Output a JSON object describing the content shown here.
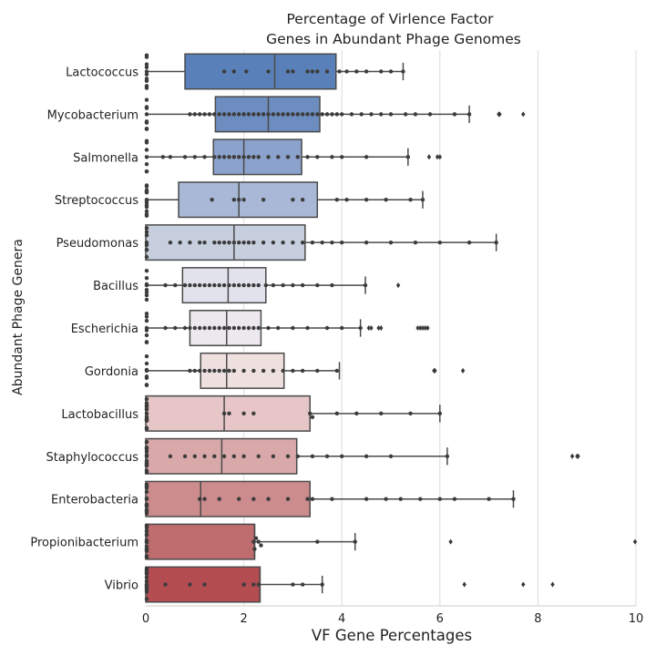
{
  "chart_data": {
    "type": "box",
    "orientation": "horizontal",
    "title": [
      "Percentage of Virlence Factor",
      "Genes in Abundant Phage Genomes"
    ],
    "xlabel": "VF Gene Percentages",
    "ylabel": "Abundant Phage Genera",
    "xlim": [
      0,
      10
    ],
    "xticks": [
      0,
      2,
      4,
      6,
      8,
      10
    ],
    "grid": "vertical",
    "overlay": "swarm points",
    "categories": [
      "Lactococcus",
      "Mycobacterium",
      "Salmonella",
      "Streptococcus",
      "Pseudomonas",
      "Bacillus",
      "Escherichia",
      "Gordonia",
      "Lactobacillus",
      "Staphylococcus",
      "Enterobacteria",
      "Propionibacterium",
      "Vibrio"
    ],
    "colors": [
      "#5a80b9",
      "#6d8dc0",
      "#8ba2cc",
      "#a9b8d7",
      "#c7cfdf",
      "#e1e2ec",
      "#ece8ee",
      "#efe0e0",
      "#e6c6c7",
      "#d9a9aa",
      "#cc8b8c",
      "#bf6c6e",
      "#b34d52"
    ],
    "boxes": [
      {
        "min": 0,
        "q1": 0.8,
        "median": 2.63,
        "q3": 3.88,
        "max": 5.25,
        "outliers": []
      },
      {
        "min": 0,
        "q1": 1.42,
        "median": 2.5,
        "q3": 3.55,
        "max": 6.6,
        "outliers": [
          7.2,
          7.22,
          7.7
        ]
      },
      {
        "min": 0,
        "q1": 1.38,
        "median": 2.0,
        "q3": 3.18,
        "max": 5.35,
        "outliers": [
          5.78,
          5.95,
          6.0
        ]
      },
      {
        "min": 0,
        "q1": 0.67,
        "median": 1.9,
        "q3": 3.5,
        "max": 5.65,
        "outliers": []
      },
      {
        "min": 0,
        "q1": 0.0,
        "median": 1.8,
        "q3": 3.25,
        "max": 7.15,
        "outliers": []
      },
      {
        "min": 0,
        "q1": 0.75,
        "median": 1.68,
        "q3": 2.45,
        "max": 4.48,
        "outliers": [
          5.15
        ]
      },
      {
        "min": 0,
        "q1": 0.9,
        "median": 1.65,
        "q3": 2.35,
        "max": 4.38,
        "outliers": [
          4.55,
          4.6,
          4.75,
          4.8,
          5.55,
          5.6,
          5.65,
          5.7,
          5.75
        ]
      },
      {
        "min": 0,
        "q1": 1.12,
        "median": 1.65,
        "q3": 2.82,
        "max": 3.95,
        "outliers": [
          5.88,
          5.9,
          6.47
        ]
      },
      {
        "min": 0,
        "q1": 0.0,
        "median": 1.6,
        "q3": 3.35,
        "max": 6.0,
        "outliers": []
      },
      {
        "min": 0,
        "q1": 0.0,
        "median": 1.55,
        "q3": 3.08,
        "max": 6.15,
        "outliers": [
          8.7,
          8.8,
          8.82
        ]
      },
      {
        "min": 0,
        "q1": 0.0,
        "median": 1.12,
        "q3": 3.35,
        "max": 7.5,
        "outliers": []
      },
      {
        "min": 0,
        "q1": 0.0,
        "median": 2.22,
        "q3": 2.22,
        "max": 4.27,
        "outliers": [
          6.22,
          10.0
        ]
      },
      {
        "min": 0,
        "q1": 0.0,
        "median": 2.33,
        "q3": 2.33,
        "max": 3.6,
        "outliers": [
          6.5,
          7.7,
          8.3
        ]
      }
    ],
    "points": [
      [
        0.0,
        0.0,
        0.0,
        0.0,
        0.0,
        0.0,
        0.0,
        0.0,
        0.0,
        0.0,
        1.6,
        1.8,
        2.05,
        2.5,
        2.9,
        3.0,
        3.3,
        3.4,
        3.5,
        3.7,
        3.95,
        4.1,
        4.3,
        4.5,
        4.8,
        5.0,
        5.25
      ],
      [
        0.0,
        0.0,
        0.0,
        0.0,
        0.0,
        0.0,
        0.0,
        0.0,
        0.9,
        1.0,
        1.1,
        1.2,
        1.3,
        1.4,
        1.5,
        1.6,
        1.7,
        1.8,
        1.9,
        2.0,
        2.1,
        2.2,
        2.3,
        2.4,
        2.5,
        2.6,
        2.7,
        2.8,
        2.9,
        3.0,
        3.1,
        3.2,
        3.3,
        3.4,
        3.5,
        3.6,
        3.7,
        3.8,
        3.9,
        4.0,
        4.2,
        4.4,
        4.6,
        4.8,
        5.0,
        5.3,
        5.5,
        5.8,
        6.3,
        6.6
      ],
      [
        0.0,
        0.0,
        0.0,
        0.0,
        0.0,
        0.0,
        0.0,
        0.35,
        0.5,
        0.8,
        1.0,
        1.2,
        1.4,
        1.5,
        1.6,
        1.7,
        1.8,
        1.9,
        2.0,
        2.1,
        2.2,
        2.3,
        2.5,
        2.7,
        2.9,
        3.1,
        3.3,
        3.5,
        3.8,
        4.0,
        4.5,
        5.35
      ],
      [
        0.0,
        0.0,
        0.0,
        0.0,
        0.0,
        0.0,
        0.0,
        0.0,
        0.0,
        0.0,
        0.0,
        0.0,
        0.0,
        0.0,
        1.35,
        1.8,
        1.9,
        2.0,
        2.4,
        3.0,
        3.2,
        3.9,
        4.1,
        4.5,
        4.9,
        5.4,
        5.65
      ],
      [
        0.0,
        0.0,
        0.0,
        0.0,
        0.0,
        0.0,
        0.0,
        0.0,
        0.5,
        0.7,
        0.9,
        1.1,
        1.2,
        1.4,
        1.5,
        1.6,
        1.7,
        1.8,
        1.9,
        2.0,
        2.1,
        2.2,
        2.4,
        2.6,
        2.8,
        3.0,
        3.2,
        3.4,
        3.6,
        3.8,
        4.0,
        4.5,
        5.0,
        5.5,
        6.0,
        6.6,
        7.15
      ],
      [
        0.0,
        0.0,
        0.0,
        0.0,
        0.0,
        0.0,
        0.0,
        0.0,
        0.4,
        0.6,
        0.8,
        0.9,
        1.0,
        1.1,
        1.2,
        1.3,
        1.4,
        1.5,
        1.6,
        1.7,
        1.8,
        1.9,
        2.0,
        2.1,
        2.2,
        2.3,
        2.45,
        2.6,
        2.8,
        3.0,
        3.2,
        3.5,
        3.8,
        4.48
      ],
      [
        0.0,
        0.0,
        0.0,
        0.0,
        0.0,
        0.0,
        0.0,
        0.0,
        0.4,
        0.6,
        0.8,
        0.9,
        1.0,
        1.1,
        1.2,
        1.3,
        1.4,
        1.5,
        1.6,
        1.7,
        1.8,
        1.9,
        2.0,
        2.1,
        2.2,
        2.3,
        2.5,
        2.7,
        3.0,
        3.3,
        3.7,
        4.0,
        4.38
      ],
      [
        0.0,
        0.0,
        0.0,
        0.0,
        0.0,
        0.0,
        0.0,
        0.0,
        0.9,
        1.0,
        1.1,
        1.2,
        1.3,
        1.4,
        1.5,
        1.6,
        1.7,
        1.8,
        2.0,
        2.2,
        2.4,
        2.6,
        2.8,
        3.0,
        3.2,
        3.5,
        3.9
      ],
      [
        0.0,
        0.0,
        0.0,
        0.0,
        0.0,
        0.0,
        0.0,
        0.0,
        0.0,
        0.0,
        0.0,
        0.0,
        0.0,
        0.0,
        0.0,
        0.0,
        1.6,
        1.7,
        2.0,
        2.2,
        3.35,
        3.4,
        3.9,
        4.3,
        4.8,
        5.4,
        6.0
      ],
      [
        0.0,
        0.0,
        0.0,
        0.0,
        0.0,
        0.0,
        0.0,
        0.0,
        0.0,
        0.0,
        0.0,
        0.0,
        0.0,
        0.0,
        0.0,
        0.0,
        0.5,
        0.8,
        1.0,
        1.2,
        1.4,
        1.6,
        1.8,
        2.0,
        2.3,
        2.6,
        2.9,
        3.1,
        3.4,
        3.7,
        4.0,
        4.5,
        5.0,
        6.15
      ],
      [
        0.0,
        0.0,
        0.0,
        0.0,
        0.0,
        0.0,
        0.0,
        0.0,
        0.0,
        0.0,
        0.0,
        0.0,
        0.0,
        0.0,
        0.0,
        0.0,
        1.1,
        1.2,
        1.5,
        1.9,
        2.2,
        2.5,
        2.9,
        3.3,
        3.4,
        3.8,
        4.5,
        4.9,
        5.2,
        5.6,
        6.0,
        6.3,
        7.0,
        7.5
      ],
      [
        0.0,
        0.0,
        0.0,
        0.0,
        0.0,
        0.0,
        0.0,
        0.0,
        0.0,
        0.0,
        0.0,
        0.0,
        0.0,
        0.0,
        0.0,
        0.0,
        2.2,
        2.22,
        2.25,
        2.3,
        2.35,
        3.5,
        4.27
      ],
      [
        0.0,
        0.0,
        0.0,
        0.0,
        0.0,
        0.0,
        0.0,
        0.0,
        0.0,
        0.0,
        0.0,
        0.0,
        0.0,
        0.0,
        0.0,
        0.4,
        0.9,
        1.2,
        2.0,
        2.2,
        2.3,
        3.0,
        3.2,
        3.6
      ]
    ]
  }
}
